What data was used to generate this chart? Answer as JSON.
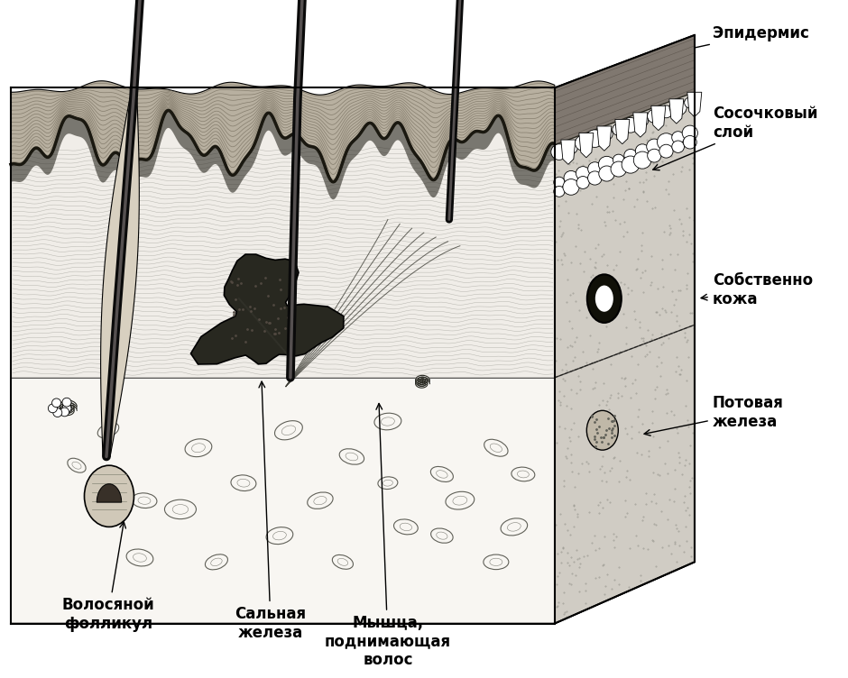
{
  "bg_color": "#ffffff",
  "labels": {
    "epidermis": "Эпидермис",
    "papillary": "Сосочковый\nслой",
    "dermis": "Собственно\nкожа",
    "sweat": "Потовая\nжелеза",
    "follicle": "Волосяной\nфолликул",
    "sebaceous": "Сальная\nжелеза",
    "muscle": "Мышца,\nподнимающая\nволос"
  }
}
